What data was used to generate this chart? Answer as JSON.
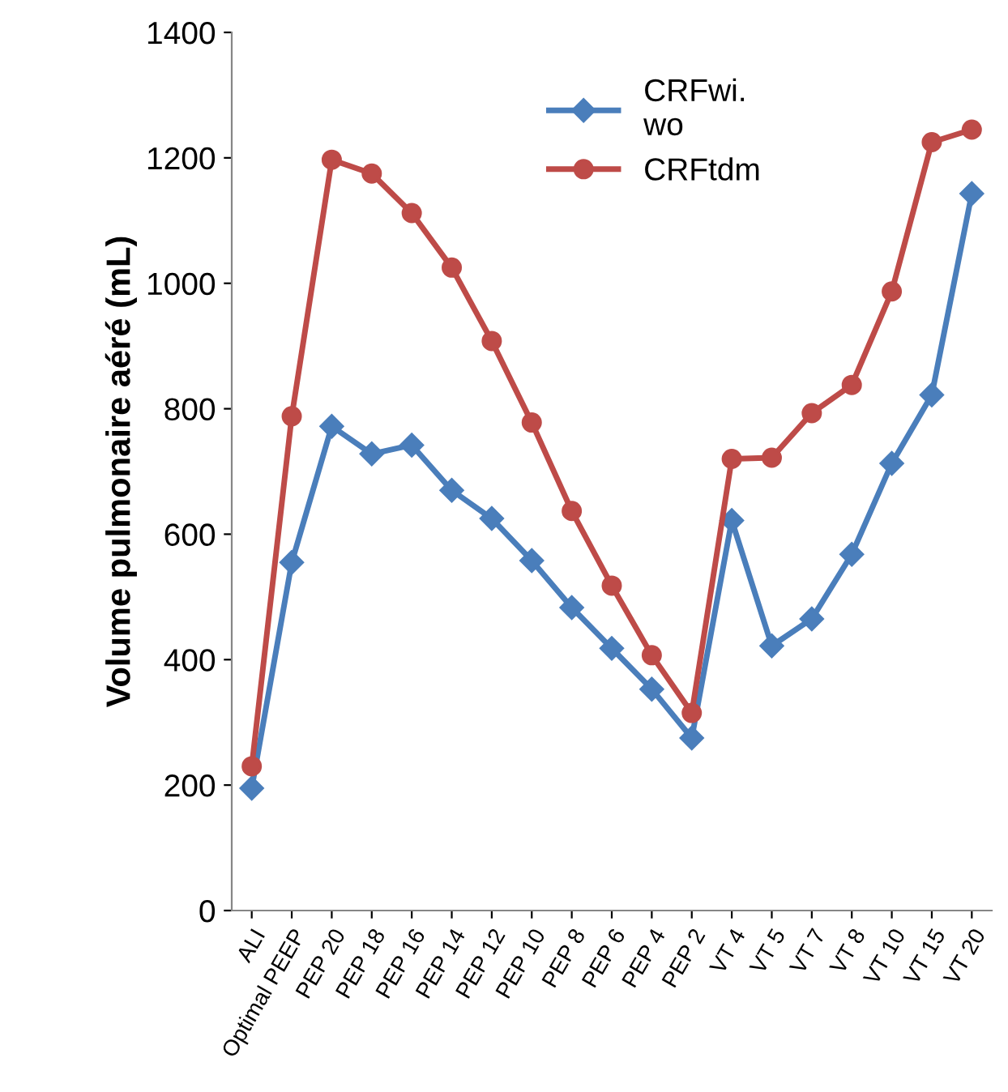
{
  "chart_data": {
    "type": "line",
    "ylabel": "Volume pulmonaire aéré (mL)",
    "categories": [
      "ALI",
      "Optimal PEEP",
      "PEP 20",
      "PEP 18",
      "PEP 16",
      "PEP 14",
      "PEP 12",
      "PEP 10",
      "PEP 8",
      "PEP 6",
      "PEP 4",
      "PEP 2",
      "VT 4",
      "VT 5",
      "VT 7",
      "VT 8",
      "VT 10",
      "VT 15",
      "VT 20"
    ],
    "series": [
      {
        "name": "CRFwi.\nwo",
        "color": "#4a7ebb",
        "marker": "diamond",
        "values": [
          195,
          555,
          772,
          728,
          742,
          670,
          625,
          558,
          483,
          418,
          353,
          275,
          622,
          422,
          465,
          568,
          713,
          822,
          1143
        ]
      },
      {
        "name": "CRFtdm",
        "color": "#be4b48",
        "marker": "circle",
        "values": [
          230,
          788,
          1197,
          1175,
          1112,
          1025,
          908,
          778,
          637,
          518,
          407,
          315,
          720,
          722,
          793,
          838,
          987,
          1225,
          1245
        ]
      }
    ],
    "ylim": [
      0,
      1400
    ],
    "yticks": [
      0,
      200,
      400,
      600,
      800,
      1000,
      1200,
      1400
    ],
    "grid": false,
    "legend": "top",
    "line_style": "solid"
  }
}
